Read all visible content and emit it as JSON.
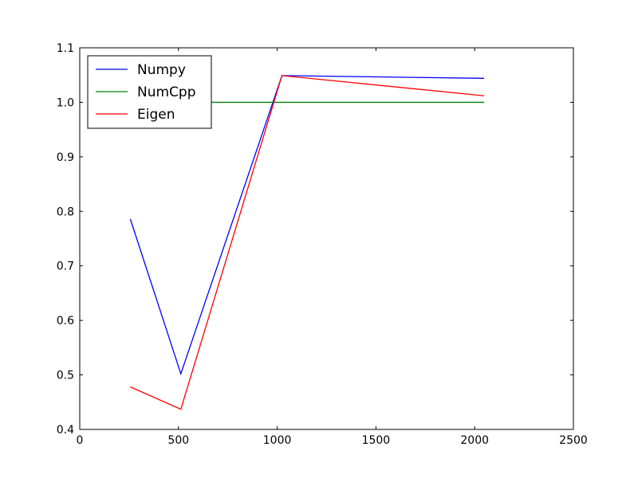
{
  "chart_data": {
    "type": "line",
    "title": "",
    "xlabel": "",
    "ylabel": "",
    "xlim": [
      0,
      2500
    ],
    "ylim": [
      0.4,
      1.1
    ],
    "x_ticks": [
      0,
      500,
      1000,
      1500,
      2000,
      2500
    ],
    "x_tick_labels": [
      "0",
      "500",
      "1000",
      "1500",
      "2000",
      "2500"
    ],
    "y_ticks": [
      0.4,
      0.5,
      0.6,
      0.7,
      0.8,
      0.9,
      1.0,
      1.1
    ],
    "y_tick_labels": [
      "0.4",
      "0.5",
      "0.6",
      "0.7",
      "0.8",
      "0.9",
      "1.0",
      "1.1"
    ],
    "grid": false,
    "legend_position": "top-left",
    "x": [
      256,
      512,
      1024,
      2048
    ],
    "series": [
      {
        "name": "Numpy",
        "color": "#0000ff",
        "values": [
          0.786,
          0.502,
          1.049,
          1.044
        ]
      },
      {
        "name": "NumCpp",
        "color": "#008000",
        "values": [
          1.0,
          1.0,
          1.0,
          1.0
        ]
      },
      {
        "name": "Eigen",
        "color": "#ff0000",
        "values": [
          0.478,
          0.437,
          1.049,
          1.012
        ]
      }
    ]
  }
}
